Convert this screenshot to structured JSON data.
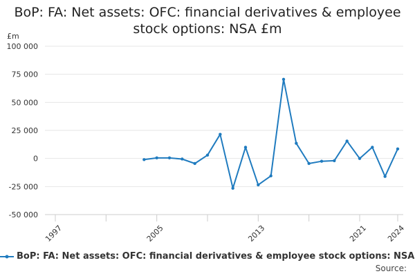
{
  "chart_data": {
    "type": "line",
    "title_lines": [
      "BoP: FA: Net assets: OFC: financial derivatives & employee",
      "stock options: NSA £m"
    ],
    "ylabel": "£m",
    "ylim": [
      -50000,
      100000
    ],
    "yticks": [
      -50000,
      -25000,
      0,
      25000,
      50000,
      75000,
      100000
    ],
    "ytick_labels": [
      "-50 000",
      "-25 000",
      "0",
      "25 000",
      "50 000",
      "75 000",
      "100 000"
    ],
    "xlim": [
      1997,
      2024
    ],
    "xtick_labels": [
      "1997",
      "2005",
      "2013",
      "2021",
      "2024"
    ],
    "grid": true,
    "legend_position": "bottom",
    "series": [
      {
        "name": "BoP: FA: Net assets: OFC: financial derivatives & employee stock options: NSA £m",
        "color": "#1f7bbf",
        "x": [
          2004,
          2005,
          2006,
          2007,
          2008,
          2009,
          2010,
          2011,
          2012,
          2013,
          2014,
          2015,
          2016,
          2017,
          2018,
          2019,
          2020,
          2021,
          2022,
          2023,
          2024
        ],
        "y": [
          -1000,
          500,
          500,
          -500,
          -4500,
          3000,
          21500,
          -26500,
          10000,
          -23500,
          -15500,
          70500,
          13500,
          -4500,
          -2500,
          -2000,
          15500,
          0,
          10000,
          -16000,
          8500
        ]
      }
    ]
  },
  "source_label": "Source:"
}
